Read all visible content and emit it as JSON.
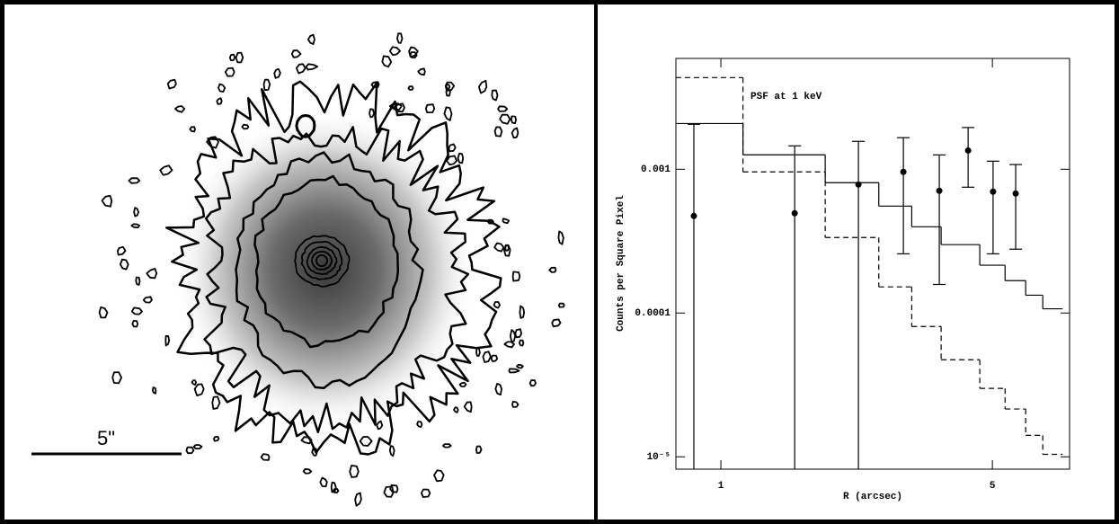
{
  "image_panel": {
    "scale_label": "5\""
  },
  "chart_data": {
    "type": "scatter",
    "xlabel": "R (arcsec)",
    "ylabel": "Counts per Square Pixel",
    "annotation": "PSF at 1 keV",
    "xscale": "log",
    "yscale": "log",
    "xlim": [
      0.766,
      7.9
    ],
    "ylim": [
      8.2e-06,
      0.0059
    ],
    "xticks": [
      1,
      5
    ],
    "yticks": [
      0.001,
      0.0001,
      {
        "value": 1e-05,
        "label": "10⁻⁵"
      }
    ],
    "color": "#000000",
    "x": [
      0.852,
      1.549,
      2.26,
      2.95,
      3.65,
      4.33,
      5.02,
      5.74
    ],
    "values": [
      0.000473,
      0.000494,
      0.000783,
      0.000958,
      0.000708,
      0.00135,
      0.000698,
      0.000678
    ],
    "yerr": [
      0.00158,
      0.00096,
      0.00078,
      0.0007,
      0.00055,
      0.0006,
      0.00044,
      0.0004
    ],
    "histograms": [
      {
        "style": "solid",
        "bins": [
          0.766,
          1.14,
          1.856,
          2.55,
          3.1,
          3.69,
          4.64,
          5.39,
          6.09,
          6.74,
          7.58
        ],
        "values": [
          0.00208,
          0.00126,
          0.000806,
          0.000554,
          0.000398,
          0.000299,
          0.000215,
          0.000168,
          0.000133,
          0.000107
        ]
      },
      {
        "style": "dashed",
        "bins": [
          0.766,
          1.14,
          1.856,
          2.55,
          3.1,
          3.69,
          4.64,
          5.39,
          6.09,
          6.74,
          7.58
        ],
        "values": [
          0.00434,
          0.000958,
          0.000335,
          0.000152,
          8.06e-05,
          4.73e-05,
          2.99e-05,
          2.15e-05,
          1.41e-05,
          1.04e-05
        ]
      }
    ]
  }
}
